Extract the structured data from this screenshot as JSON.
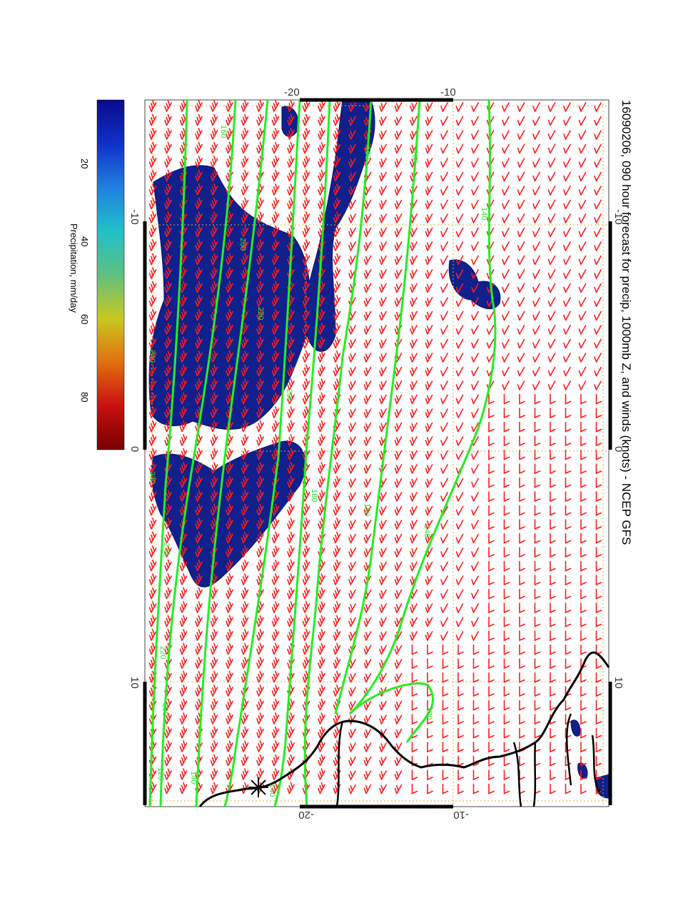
{
  "title": "16090206, 090 hour forecast for precip, 1000mb Z, and winds (knots) - NCEP GFS",
  "colorbar": {
    "label": "Precipitation, mm/day",
    "ticks": [
      "20",
      "40",
      "60",
      "80"
    ],
    "stops": [
      "#0a0a8c",
      "#1030c8",
      "#2080e0",
      "#20c0c8",
      "#60c080",
      "#c8c820",
      "#e07010",
      "#c81010",
      "#780000"
    ]
  },
  "axes": {
    "lon_ticks_left": [
      "-10",
      "0",
      "10"
    ],
    "lon_ticks_right": [
      "-10",
      "0",
      "10"
    ],
    "lat_ticks_top": [
      "-20",
      "-10"
    ],
    "lat_ticks_bottom": [
      "-20",
      "-10"
    ]
  },
  "contour_labels": [
    {
      "text": "160",
      "color": "#33dd33"
    },
    {
      "text": "180",
      "color": "#33dd33"
    },
    {
      "text": "140",
      "color": "#33dd33"
    },
    {
      "text": "200",
      "color": "#33dd33"
    },
    {
      "text": "220",
      "color": "#33dd33"
    },
    {
      "text": "240",
      "color": "#33dd33"
    },
    {
      "text": "120",
      "color": "#33dd33"
    }
  ],
  "colors": {
    "wind_barbs": "#ff1a1a",
    "contours": "#22ee22",
    "precip": "#10208c",
    "coast": "#000000",
    "grid": "#e0b020"
  }
}
